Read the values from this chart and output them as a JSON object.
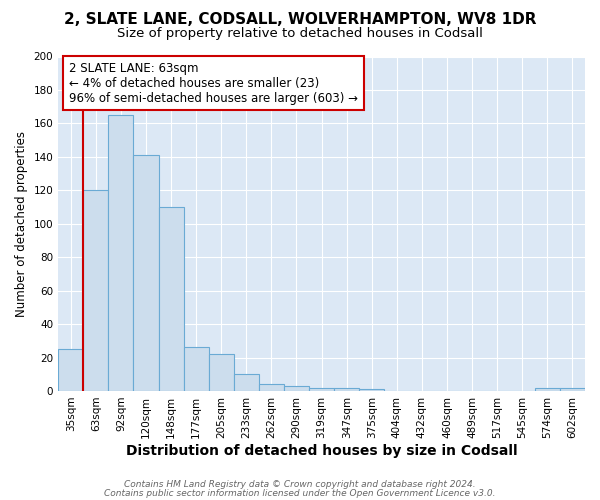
{
  "title1": "2, SLATE LANE, CODSALL, WOLVERHAMPTON, WV8 1DR",
  "title2": "Size of property relative to detached houses in Codsall",
  "xlabel": "Distribution of detached houses by size in Codsall",
  "ylabel": "Number of detached properties",
  "footnote1": "Contains HM Land Registry data © Crown copyright and database right 2024.",
  "footnote2": "Contains public sector information licensed under the Open Government Licence v3.0.",
  "bin_labels": [
    "35sqm",
    "63sqm",
    "92sqm",
    "120sqm",
    "148sqm",
    "177sqm",
    "205sqm",
    "233sqm",
    "262sqm",
    "290sqm",
    "319sqm",
    "347sqm",
    "375sqm",
    "404sqm",
    "432sqm",
    "460sqm",
    "489sqm",
    "517sqm",
    "545sqm",
    "574sqm",
    "602sqm"
  ],
  "bar_heights": [
    25,
    120,
    165,
    141,
    110,
    26,
    22,
    10,
    4,
    3,
    2,
    2,
    1,
    0,
    0,
    0,
    0,
    0,
    0,
    2,
    2
  ],
  "bar_color": "#ccdded",
  "bar_edge_color": "#6aaad4",
  "highlight_index": 1,
  "highlight_line_color": "#cc0000",
  "annotation_line1": "2 SLATE LANE: 63sqm",
  "annotation_line2": "← 4% of detached houses are smaller (23)",
  "annotation_line3": "96% of semi-detached houses are larger (603) →",
  "annotation_box_color": "#ffffff",
  "annotation_border_color": "#cc0000",
  "ylim": [
    0,
    200
  ],
  "yticks": [
    0,
    20,
    40,
    60,
    80,
    100,
    120,
    140,
    160,
    180,
    200
  ],
  "bg_color": "#dce8f5",
  "grid_color": "#ffffff",
  "fig_bg_color": "#ffffff",
  "title1_fontsize": 11,
  "title2_fontsize": 9.5,
  "xlabel_fontsize": 10,
  "ylabel_fontsize": 8.5,
  "tick_fontsize": 7.5,
  "annotation_fontsize": 8.5
}
